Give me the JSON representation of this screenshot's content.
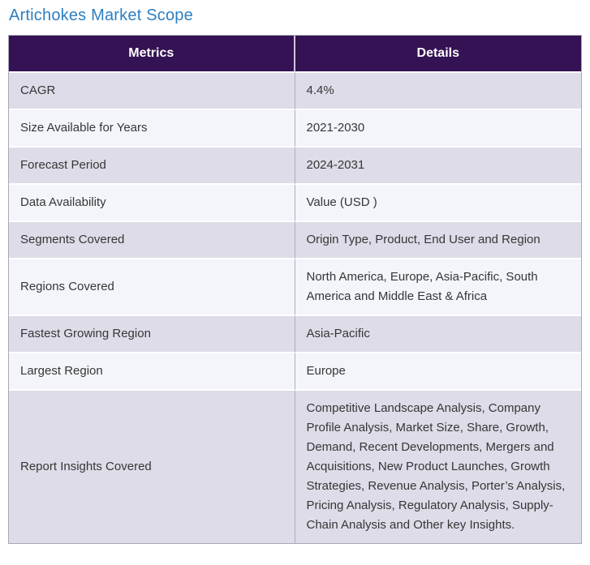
{
  "title": "Artichokes Market Scope",
  "colors": {
    "title_text": "#2d7fc1",
    "header_bg": "#351253",
    "header_text": "#ffffff",
    "row_odd_bg": "#dedce8",
    "row_even_bg": "#f3f5fb",
    "outer_border": "#aaa8b8",
    "column_divider": "#b0aec0",
    "body_text": "#363636"
  },
  "table": {
    "headers": [
      "Metrics",
      "Details"
    ],
    "rows": [
      {
        "metric": "CAGR",
        "detail": "4.4%"
      },
      {
        "metric": "Size Available for Years",
        "detail": "2021-2030"
      },
      {
        "metric": "Forecast Period",
        "detail": "2024-2031"
      },
      {
        "metric": "Data Availability",
        "detail": "Value (USD )"
      },
      {
        "metric": "Segments Covered",
        "detail": "Origin Type, Product, End User and Region"
      },
      {
        "metric": "Regions Covered",
        "detail": "North America, Europe, Asia-Pacific, South America and Middle East & Africa"
      },
      {
        "metric": "Fastest Growing Region",
        "detail": "Asia-Pacific"
      },
      {
        "metric": "Largest Region",
        "detail": "Europe"
      },
      {
        "metric": "Report Insights Covered",
        "detail": "Competitive Landscape Analysis, Company Profile Analysis, Market Size, Share, Growth, Demand, Recent Developments, Mergers and Acquisitions, New Product Launches, Growth Strategies, Revenue Analysis, Porter’s Analysis, Pricing Analysis, Regulatory Analysis, Supply-Chain Analysis and Other key Insights."
      }
    ]
  }
}
